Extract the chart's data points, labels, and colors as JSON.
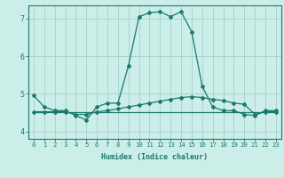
{
  "xlabel": "Humidex (Indice chaleur)",
  "bg_color": "#cceee8",
  "grid_color": "#aad4ce",
  "line_color": "#1a7a6e",
  "xlim": [
    -0.5,
    23.5
  ],
  "ylim": [
    3.8,
    7.35
  ],
  "xticks": [
    0,
    1,
    2,
    3,
    4,
    5,
    6,
    7,
    8,
    9,
    10,
    11,
    12,
    13,
    14,
    15,
    16,
    17,
    18,
    19,
    20,
    21,
    22,
    23
  ],
  "yticks": [
    4,
    5,
    6,
    7
  ],
  "line1_x": [
    0,
    1,
    2,
    3,
    4,
    5,
    6,
    7,
    8,
    9,
    10,
    11,
    12,
    13,
    14,
    15,
    16,
    17,
    18,
    19,
    20,
    21,
    22,
    23
  ],
  "line1_y": [
    4.95,
    4.65,
    4.55,
    4.55,
    4.42,
    4.3,
    4.65,
    4.75,
    4.75,
    5.75,
    7.05,
    7.15,
    7.18,
    7.05,
    7.18,
    6.65,
    5.2,
    4.65,
    4.55,
    4.55,
    4.45,
    4.42,
    4.55,
    4.55
  ],
  "line2_x": [
    0,
    1,
    2,
    3,
    4,
    5,
    6,
    7,
    8,
    9,
    10,
    11,
    12,
    13,
    14,
    15,
    16,
    17,
    18,
    19,
    20,
    21,
    22,
    23
  ],
  "line2_y": [
    4.52,
    4.52,
    4.52,
    4.52,
    4.52,
    4.52,
    4.52,
    4.52,
    4.52,
    4.52,
    4.52,
    4.52,
    4.52,
    4.52,
    4.52,
    4.52,
    4.52,
    4.52,
    4.52,
    4.52,
    4.52,
    4.52,
    4.52,
    4.52
  ],
  "line3_x": [
    0,
    1,
    2,
    3,
    4,
    5,
    6,
    7,
    8,
    9,
    10,
    11,
    12,
    13,
    14,
    15,
    16,
    17,
    18,
    19,
    20,
    21,
    22,
    23
  ],
  "line3_y": [
    4.52,
    4.52,
    4.52,
    4.52,
    4.45,
    4.45,
    4.52,
    4.55,
    4.6,
    4.65,
    4.7,
    4.75,
    4.8,
    4.85,
    4.9,
    4.92,
    4.9,
    4.85,
    4.82,
    4.75,
    4.72,
    4.45,
    4.52,
    4.52
  ],
  "xlabel_fontsize": 6.0,
  "tick_fontsize": 5.2,
  "ytick_fontsize": 6.0
}
